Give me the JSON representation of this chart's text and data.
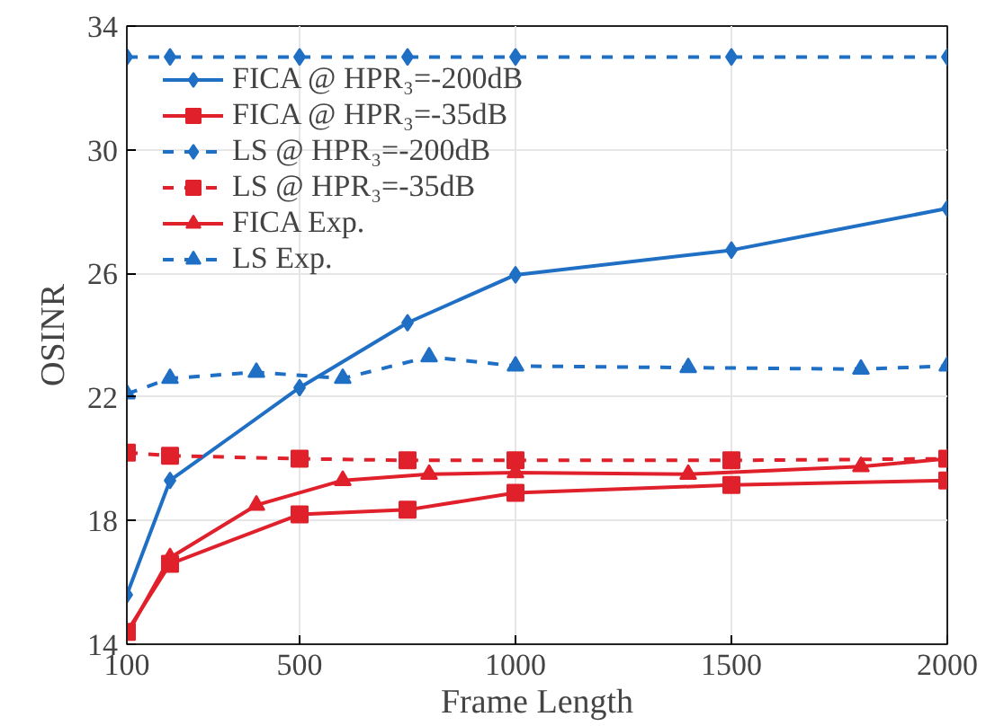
{
  "chart_data": {
    "type": "line",
    "xlabel": "Frame Length",
    "ylabel": "OSINR",
    "xlim": [
      100,
      2000
    ],
    "ylim": [
      14,
      34
    ],
    "xticks": [
      100,
      500,
      1000,
      1500,
      2000
    ],
    "yticks": [
      14,
      18,
      22,
      26,
      30,
      34
    ],
    "grid": true,
    "legend": "top left",
    "series": [
      {
        "name": "FICA @ HPR₃=-200dB",
        "color": "#1f6fc5",
        "marker": "diamond",
        "line_style": "solid",
        "x": [
          100,
          200,
          500,
          750,
          1000,
          1500,
          2000
        ],
        "values": [
          15.6,
          19.3,
          22.3,
          24.4,
          25.95,
          26.75,
          28.1
        ]
      },
      {
        "name": "FICA @ HPR₃=-35dB",
        "color": "#e0202a",
        "marker": "square",
        "line_style": "solid",
        "x": [
          100,
          200,
          500,
          750,
          1000,
          1500,
          2000
        ],
        "values": [
          14.4,
          16.6,
          18.2,
          18.35,
          18.9,
          19.15,
          19.3
        ]
      },
      {
        "name": "LS @ HPR₃=-200dB",
        "color": "#1f6fc5",
        "marker": "diamond",
        "line_style": "dashed",
        "x": [
          100,
          200,
          500,
          750,
          1000,
          1500,
          2000
        ],
        "values": [
          33.0,
          33.0,
          33.0,
          33.0,
          33.0,
          33.0,
          33.0
        ]
      },
      {
        "name": "LS @ HPR₃=-35dB",
        "color": "#e0202a",
        "marker": "square",
        "line_style": "dashed",
        "x": [
          100,
          200,
          500,
          750,
          1000,
          1500,
          2000
        ],
        "values": [
          20.2,
          20.1,
          20.0,
          19.95,
          19.95,
          19.95,
          20.0
        ]
      },
      {
        "name": "FICA Exp.",
        "color": "#e0202a",
        "marker": "triangle",
        "line_style": "solid",
        "x": [
          100,
          200,
          400,
          600,
          800,
          1000,
          1400,
          1800,
          2000
        ],
        "values": [
          14.3,
          16.8,
          18.5,
          19.3,
          19.5,
          19.55,
          19.5,
          19.75,
          20.0
        ]
      },
      {
        "name": "LS Exp.",
        "color": "#1f6fc5",
        "marker": "triangle",
        "line_style": "dashed",
        "x": [
          100,
          200,
          400,
          600,
          800,
          1000,
          1400,
          1800,
          2000
        ],
        "values": [
          22.1,
          22.6,
          22.8,
          22.6,
          23.3,
          23.0,
          22.95,
          22.9,
          23.0
        ]
      }
    ]
  }
}
